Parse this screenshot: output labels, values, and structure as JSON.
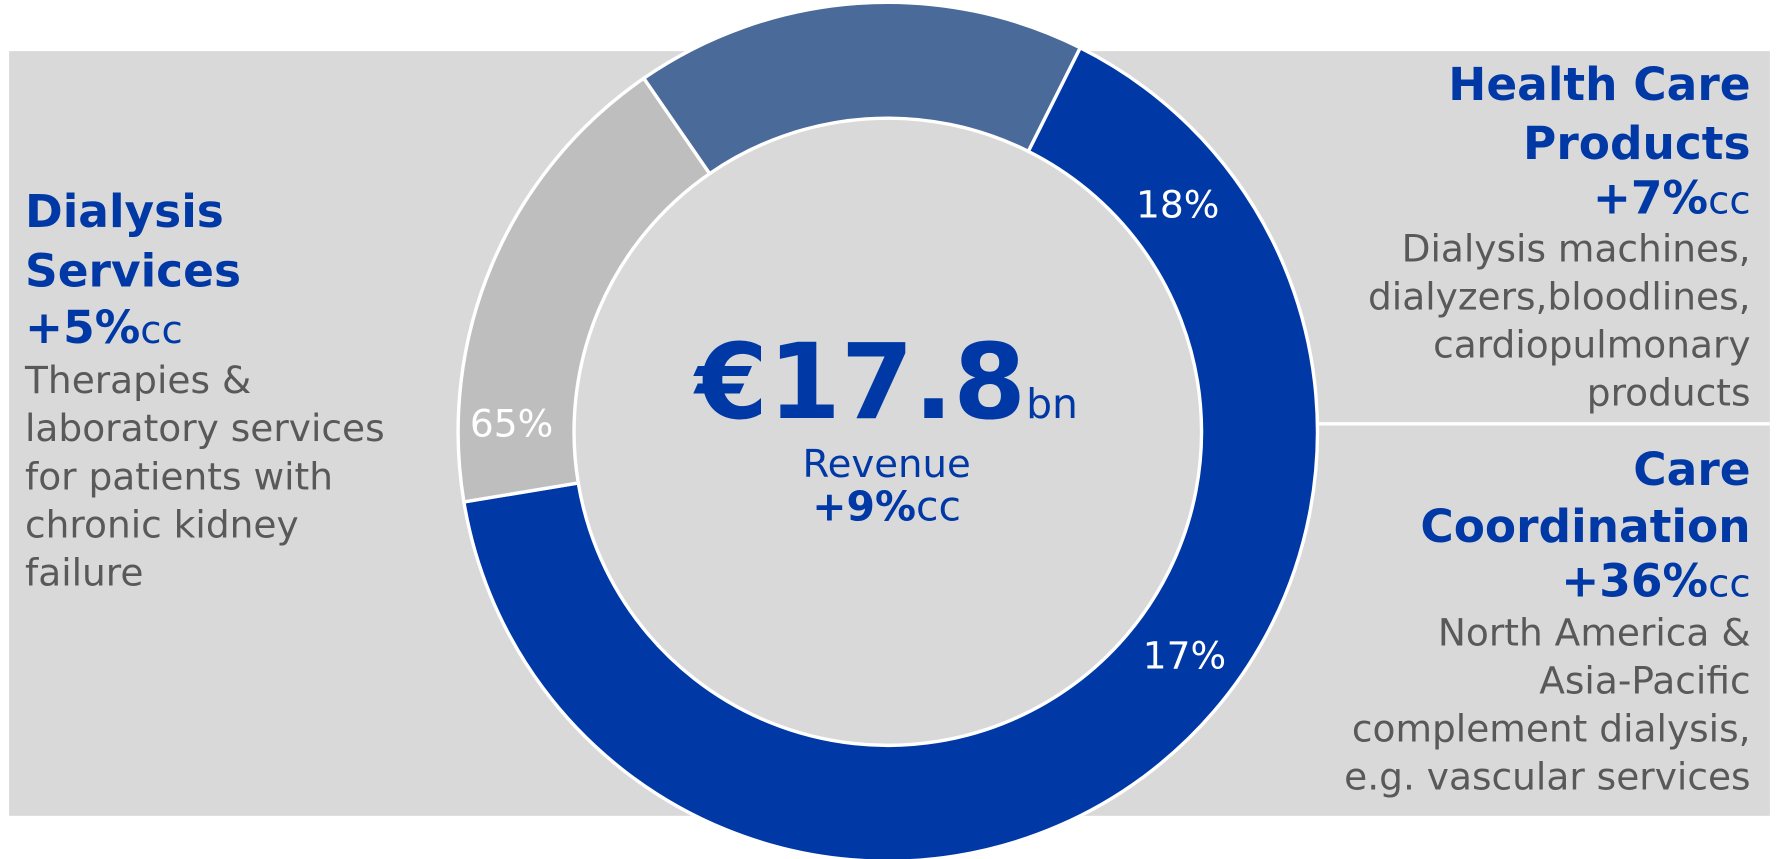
{
  "chart_data": {
    "type": "donut",
    "categories": [
      "Dialysis Services",
      "Health Care Products",
      "Care Coordination"
    ],
    "values": [
      65,
      18,
      17
    ],
    "value_labels": [
      "65%",
      "18%",
      "17%"
    ],
    "colors": [
      "#0039a6",
      "#bebebe",
      "#4a6a9a"
    ],
    "segment_text": [
      {
        "title_lines": [
          "Dialysis",
          "Services"
        ],
        "growth": "+5%",
        "growth_unit": "cc",
        "description_lines": [
          "Therapies &",
          "laboratory services",
          "for patients with",
          "chronic kidney",
          "failure"
        ]
      },
      {
        "title_lines": [
          "Health Care",
          "Products"
        ],
        "growth": "+7%",
        "growth_unit": "cc",
        "description_lines": [
          "Dialysis machines,",
          "dialyzers,bloodlines,",
          "cardiopulmonary",
          "products"
        ]
      },
      {
        "title_lines": [
          "Care",
          "Coordination"
        ],
        "growth": "+36%",
        "growth_unit": "cc",
        "description_lines": [
          "North America &",
          "Asia-Pacific",
          "complement dialysis,",
          "e.g. vascular services"
        ]
      }
    ],
    "center": {
      "total": "€17.8",
      "total_unit": "bn",
      "label": "Revenue",
      "growth": "+9%",
      "growth_unit": "cc"
    }
  }
}
